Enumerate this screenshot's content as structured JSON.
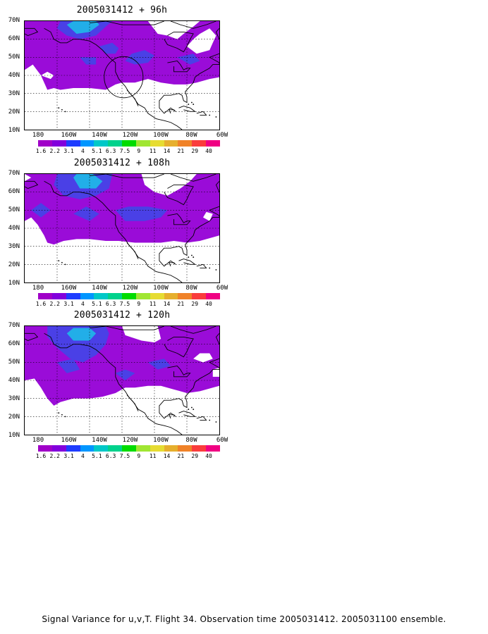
{
  "panels": [
    {
      "title": "2005031412 + 96h"
    },
    {
      "title": "2005031412 + 108h"
    },
    {
      "title": "2005031412 + 120h"
    }
  ],
  "lat_labels": [
    "70N",
    "60N",
    "50N",
    "40N",
    "30N",
    "20N",
    "10N"
  ],
  "lon_labels": [
    "180",
    "160W",
    "140W",
    "120W",
    "100W",
    "80W",
    "60W"
  ],
  "colorbar": {
    "labels": [
      "1.6",
      "2.2",
      "3.1",
      "4",
      "5.1",
      "6.3",
      "7.5",
      "9",
      "11",
      "14",
      "21",
      "29",
      "40"
    ],
    "colors": [
      "#a000c8",
      "#8200dc",
      "#1e3cff",
      "#0096ff",
      "#00c8c8",
      "#00d28c",
      "#00dc00",
      "#a0e632",
      "#e6dc32",
      "#e6af2d",
      "#f08228",
      "#fa3c3c",
      "#f00082"
    ]
  },
  "footer": "Signal Variance for u,v,T. Flight 34. Observation time 2005031412. 2005031100 ensemble."
}
